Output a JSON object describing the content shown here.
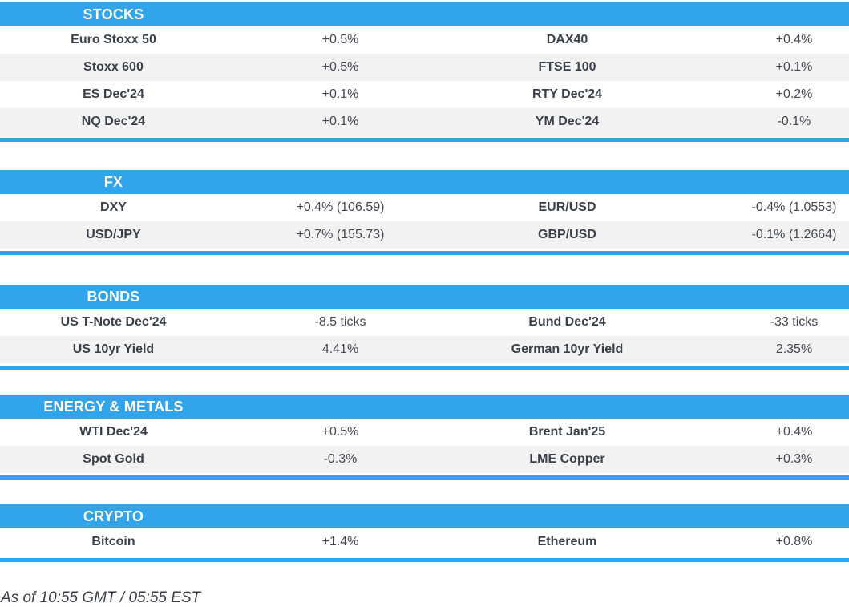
{
  "colors": {
    "accent": "#31a4ec",
    "row_stripe": "#f2f2f2",
    "header_text": "#ffffff",
    "label_text": "#3a414b",
    "value_text": "#424750",
    "footer_text": "#3a3f46"
  },
  "sections": [
    {
      "title": "STOCKS",
      "rows": [
        {
          "cells": [
            "Euro Stoxx 50",
            "+0.5%",
            "DAX40",
            "+0.4%"
          ]
        },
        {
          "cells": [
            "Stoxx 600",
            "+0.5%",
            "FTSE 100",
            "+0.1%"
          ]
        },
        {
          "cells": [
            "ES Dec'24",
            "+0.1%",
            "RTY Dec'24",
            "+0.2%"
          ]
        },
        {
          "cells": [
            "NQ Dec'24",
            "+0.1%",
            "YM Dec'24",
            "-0.1%"
          ]
        }
      ]
    },
    {
      "title": "FX",
      "rows": [
        {
          "cells": [
            "DXY",
            "+0.4% (106.59)",
            "EUR/USD",
            "-0.4% (1.0553)"
          ]
        },
        {
          "cells": [
            "USD/JPY",
            "+0.7% (155.73)",
            "GBP/USD",
            "-0.1% (1.2664)"
          ]
        }
      ]
    },
    {
      "title": "BONDS",
      "rows": [
        {
          "cells": [
            "US T-Note Dec'24",
            "-8.5 ticks",
            "Bund Dec'24",
            "-33 ticks"
          ]
        },
        {
          "cells": [
            "US 10yr Yield",
            "4.41%",
            "German 10yr Yield",
            "2.35%"
          ]
        }
      ]
    },
    {
      "title": "ENERGY & METALS",
      "rows": [
        {
          "cells": [
            "WTI Dec'24",
            "+0.5%",
            "Brent Jan'25",
            "+0.4%"
          ]
        },
        {
          "cells": [
            "Spot Gold",
            "-0.3%",
            "LME Copper",
            "+0.3%"
          ]
        }
      ]
    },
    {
      "title": "CRYPTO",
      "rows": [
        {
          "cells": [
            "Bitcoin",
            "+1.4%",
            "Ethereum",
            "+0.8%"
          ]
        }
      ]
    }
  ],
  "footer": {
    "as_of": "As of 10:55 GMT / 05:55 EST"
  }
}
